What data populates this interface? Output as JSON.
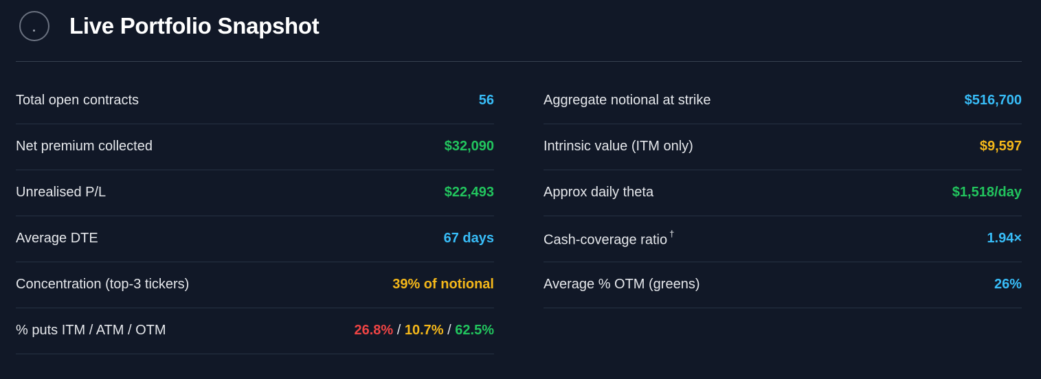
{
  "header": {
    "title": "Live Portfolio Snapshot",
    "icon": "spinner-icon"
  },
  "colors": {
    "blue": "#38bdf8",
    "green": "#22c55e",
    "amber": "#f5b81a",
    "red": "#ef4444"
  },
  "left": [
    {
      "label": "Total open contracts",
      "value": "56",
      "color": "blue"
    },
    {
      "label": "Net premium collected",
      "value": "$32,090",
      "color": "green"
    },
    {
      "label": "Unrealised P/L",
      "value": "$22,493",
      "color": "green"
    },
    {
      "label": "Average DTE",
      "value": "67 days",
      "color": "blue"
    },
    {
      "label": "Concentration (top-3 tickers)",
      "value": "39% of notional",
      "color": "amber"
    },
    {
      "label": "% puts ITM / ATM / OTM",
      "parts": {
        "itm": "26.8%",
        "sep1": "/",
        "atm": "10.7%",
        "sep2": "/",
        "otm": "62.5%"
      }
    }
  ],
  "right": [
    {
      "label": "Aggregate notional at strike",
      "value": "$516,700",
      "color": "blue"
    },
    {
      "label": "Intrinsic value (ITM only)",
      "value": "$9,597",
      "color": "amber"
    },
    {
      "label": "Approx daily theta",
      "value": "$1,518/day",
      "color": "green"
    },
    {
      "label": "Cash-coverage ratio",
      "footnote": "†",
      "value": "1.94×",
      "color": "blue"
    },
    {
      "label": "Average % OTM (greens)",
      "value": "26%",
      "color": "blue"
    }
  ]
}
